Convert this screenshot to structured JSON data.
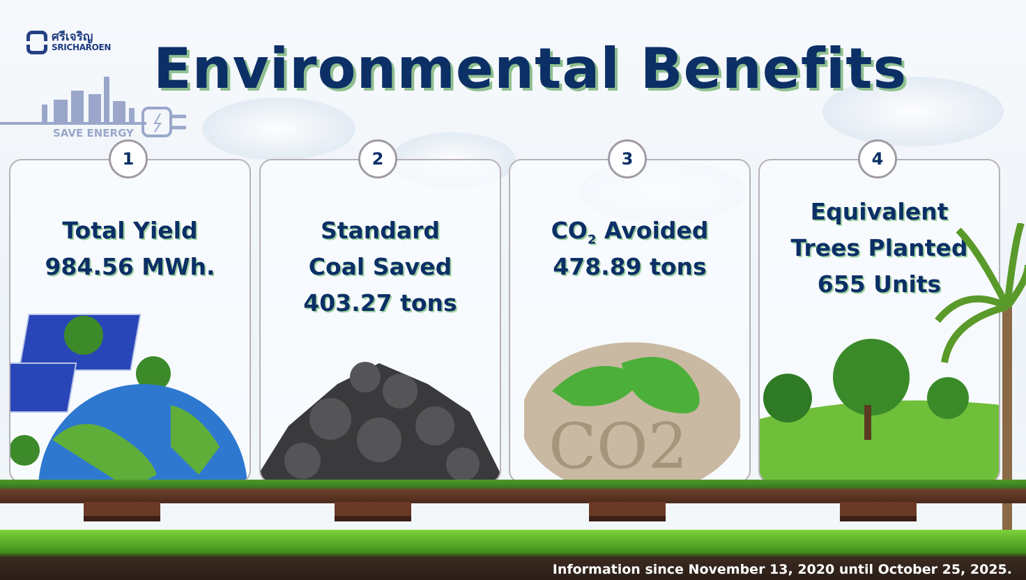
{
  "logo": {
    "thai": "ศรีเจริญ",
    "english": "SRICHAROEN"
  },
  "badge": {
    "label": "SAVE ENERGY"
  },
  "title": "Environmental Benefits",
  "cards": [
    {
      "number": "1",
      "line1": "Total Yield",
      "line2": "984.56 MWh.",
      "image": "solar-earth"
    },
    {
      "number": "2",
      "line1": "Standard",
      "line2": "Coal Saved",
      "line3": "403.27 tons",
      "image": "coal-pile"
    },
    {
      "number": "3",
      "line1a": "CO",
      "line1sub": "2",
      "line1b": " Avoided",
      "line2": "478.89 tons",
      "image": "co2-footprint"
    },
    {
      "number": "4",
      "line1": "Equivalent",
      "line2": "Trees Planted",
      "line3": "655 Units",
      "image": "trees-hill"
    }
  ],
  "footer": "Information since November 13, 2020 until October 25, 2025.",
  "colors": {
    "title": "#0c2f66",
    "shadow": "#8fbf8f",
    "brand": "#243f85"
  }
}
